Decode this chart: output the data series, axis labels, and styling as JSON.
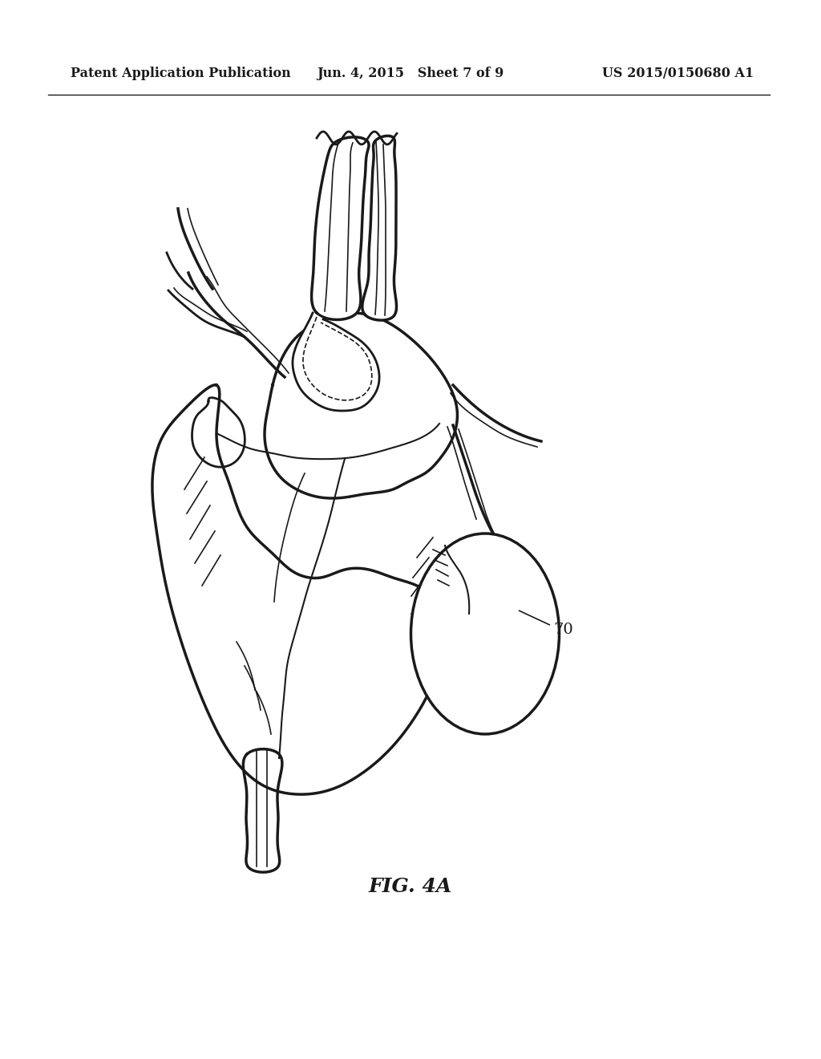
{
  "background_color": "#ffffff",
  "line_color": "#1a1a1a",
  "header_left": "Patent Application Publication",
  "header_center": "Jun. 4, 2015   Sheet 7 of 9",
  "header_right": "US 2015/0150680 A1",
  "figure_label": "FIG. 4A",
  "label_70": "70"
}
